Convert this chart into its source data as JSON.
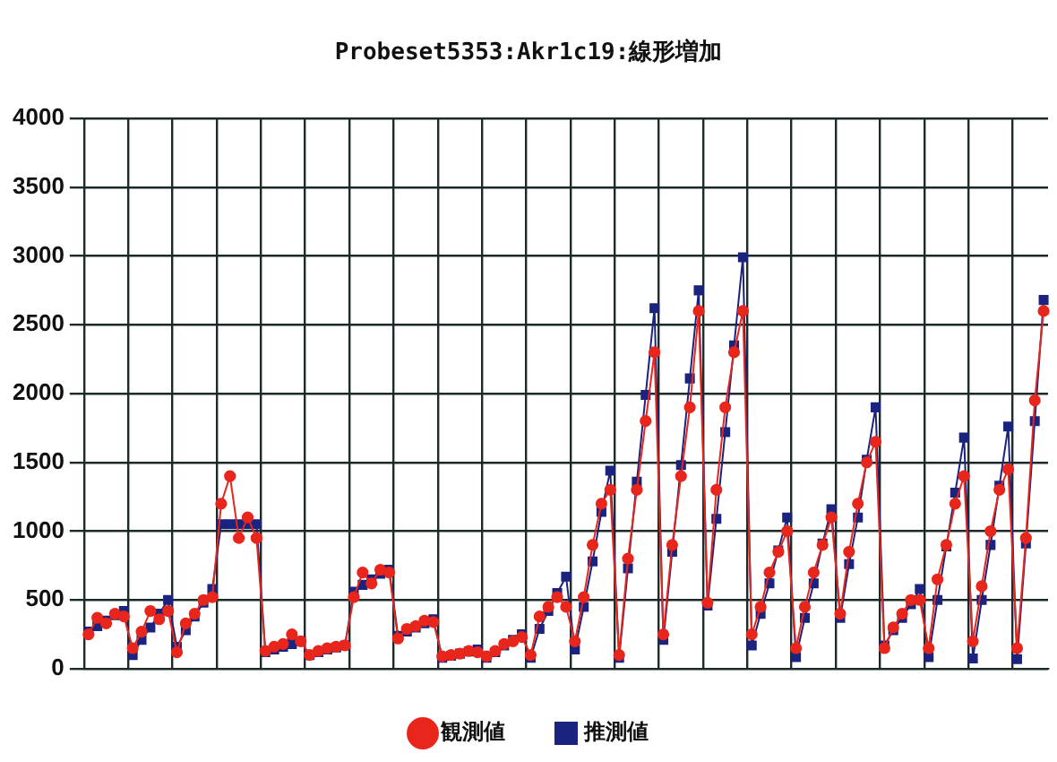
{
  "chart_data": {
    "type": "line",
    "title": "Probeset5353:Akr1c19:線形増加",
    "categories": [
      null,
      null,
      null,
      null,
      null,
      null,
      null,
      null,
      null,
      null,
      null,
      null,
      null,
      null,
      null,
      null,
      null,
      null,
      null,
      null,
      null,
      null,
      null,
      null,
      null,
      null,
      null,
      null,
      null,
      null,
      null,
      null,
      null,
      null,
      null,
      null,
      null,
      null,
      null,
      null,
      null,
      null,
      null,
      null,
      null,
      null,
      null,
      null,
      null,
      null,
      null,
      null,
      null,
      null,
      null,
      null,
      null,
      null,
      null,
      null,
      null,
      null,
      null,
      null,
      null,
      null,
      null,
      null,
      null,
      null,
      null,
      null,
      null,
      null,
      null,
      null,
      null,
      null,
      null,
      null,
      null,
      null,
      null,
      null,
      null,
      null,
      null,
      null,
      null,
      null,
      null,
      null,
      null,
      null,
      null,
      null,
      null,
      null,
      null,
      null,
      null,
      null,
      null,
      null,
      null,
      null,
      null,
      null,
      null
    ],
    "series": [
      {
        "name": "観測値",
        "color": "#e8261c",
        "marker": "circle",
        "values": [
          250,
          370,
          330,
          400,
          380,
          150,
          270,
          420,
          360,
          420,
          120,
          330,
          400,
          500,
          520,
          1200,
          1400,
          950,
          1100,
          950,
          130,
          160,
          180,
          250,
          200,
          100,
          130,
          150,
          160,
          170,
          520,
          700,
          620,
          720,
          700,
          220,
          290,
          310,
          350,
          340,
          90,
          100,
          110,
          130,
          120,
          90,
          130,
          180,
          200,
          230,
          100,
          380,
          450,
          520,
          450,
          200,
          520,
          900,
          1200,
          1300,
          100,
          800,
          1300,
          1800,
          2300,
          250,
          900,
          1400,
          1900,
          2600,
          480,
          1300,
          1900,
          2300,
          2600,
          250,
          450,
          700,
          850,
          1000,
          150,
          450,
          700,
          900,
          1100,
          400,
          850,
          1200,
          1500,
          1650,
          150,
          300,
          400,
          500,
          500,
          150,
          650,
          900,
          1200,
          1400,
          200,
          600,
          1000,
          1300,
          1450,
          150,
          950,
          1950,
          2600
        ]
      },
      {
        "name": "推測値",
        "color": "#1a237e",
        "marker": "square",
        "values": [
          270,
          310,
          350,
          390,
          420,
          100,
          210,
          300,
          400,
          500,
          160,
          280,
          380,
          480,
          580,
          1050,
          1050,
          1050,
          1050,
          1050,
          120,
          140,
          160,
          180,
          200,
          100,
          120,
          140,
          155,
          170,
          560,
          610,
          650,
          690,
          720,
          240,
          270,
          300,
          330,
          360,
          80,
          95,
          110,
          125,
          140,
          80,
          120,
          170,
          210,
          250,
          80,
          290,
          420,
          550,
          670,
          140,
          450,
          780,
          1140,
          1440,
          80,
          730,
          1360,
          1990,
          2620,
          210,
          850,
          1480,
          2110,
          2750,
          460,
          1090,
          1720,
          2350,
          2990,
          170,
          400,
          620,
          860,
          1100,
          85,
          370,
          620,
          910,
          1160,
          370,
          760,
          1100,
          1520,
          1900,
          170,
          280,
          370,
          470,
          580,
          85,
          500,
          890,
          1280,
          1680,
          75,
          500,
          900,
          1330,
          1760,
          70,
          910,
          1800,
          2680
        ]
      }
    ],
    "ylim": [
      0,
      4000
    ],
    "yticks": [
      0,
      500,
      1000,
      1500,
      2000,
      2500,
      3000,
      3500,
      4000
    ],
    "tick_labels": "y",
    "grid": true,
    "legend": "bottom",
    "line_style": "solid"
  }
}
